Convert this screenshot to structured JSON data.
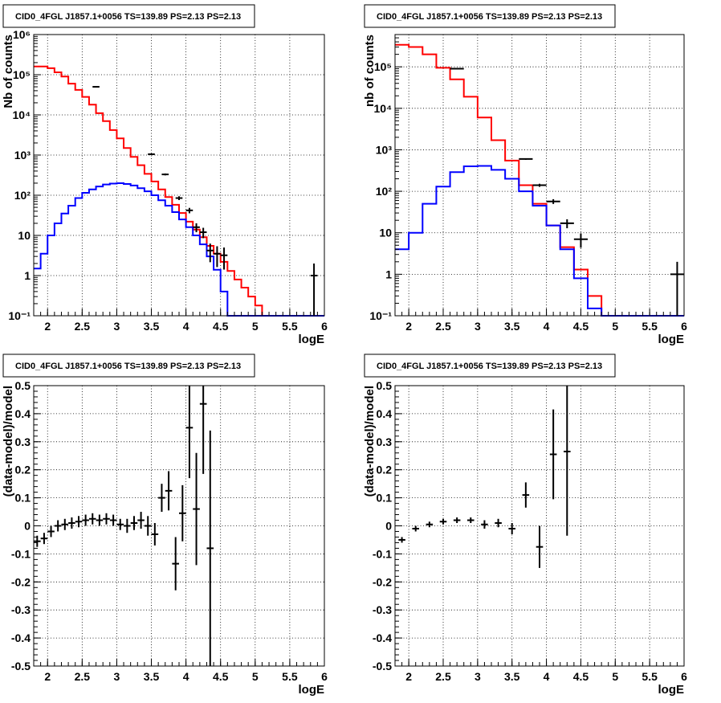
{
  "canvas": {
    "background": "#ffffff"
  },
  "colors": {
    "total": "#ff0000",
    "source": "#0000ff",
    "data": "#000000",
    "grid": "#000000"
  },
  "chart_data": [
    {
      "id": "counts-left",
      "type": "line",
      "title": "CID0_4FGL J1857.1+0056 TS=139.89 PS=2.13 PS=2.13",
      "xlabel": "logE",
      "ylabel": "Nb of counts",
      "xlim": [
        1.8,
        6.0
      ],
      "ylim": [
        0.1,
        1000000
      ],
      "log_y": true,
      "grid": true,
      "x_ticks": [
        "2",
        "2.5",
        "3",
        "3.5",
        "4",
        "4.5",
        "5",
        "5.5",
        "6"
      ],
      "y_ticks": [
        "10^-1",
        "1",
        "10",
        "10^2",
        "10^3",
        "10^4",
        "10^5",
        "10^6"
      ],
      "bin_edges": [
        1.8,
        1.9,
        2.0,
        2.1,
        2.2,
        2.3,
        2.4,
        2.5,
        2.6,
        2.7,
        2.8,
        2.9,
        3.0,
        3.1,
        3.2,
        3.3,
        3.4,
        3.5,
        3.6,
        3.7,
        3.8,
        3.9,
        4.0,
        4.1,
        4.2,
        4.3,
        4.4,
        4.5,
        4.6,
        4.7,
        4.8,
        4.9,
        5.0,
        5.1,
        5.2,
        5.3,
        5.4,
        5.5,
        5.6,
        5.7,
        5.8,
        5.9,
        6.0
      ],
      "series": [
        {
          "name": "total",
          "color": "#ff0000",
          "values": [
            160000,
            160000,
            145000,
            115000,
            90000,
            60000,
            42000,
            28000,
            18000,
            11000,
            7000,
            4200,
            2600,
            1500,
            900,
            560,
            340,
            220,
            140,
            90,
            58,
            36,
            22,
            14,
            9,
            5.5,
            3.5,
            2.2,
            1.3,
            0.8,
            0.5,
            0.3,
            0.18,
            0.1,
            0.1,
            0.1,
            0.1,
            0.1,
            0.1,
            0.1,
            0.1,
            0.1
          ]
        },
        {
          "name": "source",
          "color": "#0000ff",
          "values": [
            1.5,
            3.5,
            10,
            20,
            35,
            55,
            85,
            115,
            140,
            165,
            185,
            195,
            200,
            190,
            175,
            150,
            125,
            100,
            75,
            55,
            38,
            25,
            16,
            10,
            6,
            3,
            1.4,
            0.4,
            0.1,
            0.1,
            0.1,
            0.1,
            0.1,
            0.1,
            0.1,
            0.1,
            0.1,
            0.1,
            0.1,
            0.1,
            0.1,
            0.1
          ]
        }
      ],
      "points": [
        {
          "x": 2.7,
          "y": 50000
        },
        {
          "x": 3.5,
          "y": 1050
        },
        {
          "x": 3.7,
          "y": 330
        },
        {
          "x": 3.9,
          "y": 85
        },
        {
          "x": 4.05,
          "y": 42
        },
        {
          "x": 4.15,
          "y": 16
        },
        {
          "x": 4.25,
          "y": 12
        },
        {
          "x": 4.35,
          "y": 4.2
        },
        {
          "x": 4.45,
          "y": 3.5
        },
        {
          "x": 4.55,
          "y": 3.2
        },
        {
          "x": 5.85,
          "y": 1.0
        }
      ]
    },
    {
      "id": "counts-right",
      "type": "line",
      "title": "CID0_4FGL J1857.1+0056 TS=139.89 PS=2.13 PS=2.13",
      "xlabel": "logE",
      "ylabel": "nb of counts",
      "xlim": [
        1.8,
        6.0
      ],
      "ylim": [
        0.1,
        600000
      ],
      "log_y": true,
      "grid": true,
      "x_ticks": [
        "2",
        "2.5",
        "3",
        "3.5",
        "4",
        "4.5",
        "5",
        "5.5",
        "6"
      ],
      "y_ticks": [
        "10^-1",
        "1",
        "10",
        "10^2",
        "10^3",
        "10^4",
        "10^5"
      ],
      "bin_edges": [
        1.8,
        2.0,
        2.2,
        2.4,
        2.6,
        2.8,
        3.0,
        3.2,
        3.4,
        3.6,
        3.8,
        4.0,
        4.2,
        4.4,
        4.6,
        4.8,
        5.0,
        5.2,
        5.4,
        5.6,
        5.8,
        6.0
      ],
      "series": [
        {
          "name": "total",
          "color": "#ff0000",
          "values": [
            340000,
            300000,
            200000,
            95000,
            50000,
            19000,
            6000,
            1700,
            550,
            140,
            50,
            15,
            4.5,
            1.3,
            0.3,
            0.1,
            0.1,
            0.1,
            0.1,
            0.1,
            0.1
          ]
        },
        {
          "name": "source",
          "color": "#0000ff",
          "values": [
            4,
            10,
            50,
            130,
            290,
            400,
            410,
            330,
            200,
            100,
            45,
            15,
            4,
            0.8,
            0.15,
            0.1,
            0.1,
            0.1,
            0.1,
            0.1,
            0.1
          ]
        }
      ],
      "points": [
        {
          "x": 2.7,
          "y": 90000
        },
        {
          "x": 3.7,
          "y": 600
        },
        {
          "x": 3.9,
          "y": 140
        },
        {
          "x": 4.1,
          "y": 57
        },
        {
          "x": 4.3,
          "y": 17
        },
        {
          "x": 4.5,
          "y": 7
        },
        {
          "x": 5.9,
          "y": 1.0
        }
      ]
    },
    {
      "id": "residual-left",
      "type": "scatter",
      "title": "CID0_4FGL J1857.1+0056 TS=139.89 PS=2.13 PS=2.13",
      "xlabel": "logE",
      "ylabel": "(data-model)/model",
      "xlim": [
        1.8,
        6.0
      ],
      "ylim": [
        -0.5,
        0.5
      ],
      "grid": true,
      "x_ticks": [
        "2",
        "2.5",
        "3",
        "3.5",
        "4",
        "4.5",
        "5",
        "5.5",
        "6"
      ],
      "y_ticks": [
        "-0.5",
        "-0.4",
        "-0.3",
        "-0.2",
        "-0.1",
        "0",
        "0.1",
        "0.2",
        "0.3",
        "0.4",
        "0.5"
      ],
      "points": [
        {
          "x": 1.85,
          "y": -0.055,
          "yerr": 0.02
        },
        {
          "x": 1.95,
          "y": -0.045,
          "yerr": 0.02
        },
        {
          "x": 2.05,
          "y": -0.02,
          "yerr": 0.02
        },
        {
          "x": 2.15,
          "y": 0.0,
          "yerr": 0.02
        },
        {
          "x": 2.25,
          "y": 0.005,
          "yerr": 0.02
        },
        {
          "x": 2.35,
          "y": 0.01,
          "yerr": 0.02
        },
        {
          "x": 2.45,
          "y": 0.015,
          "yerr": 0.02
        },
        {
          "x": 2.55,
          "y": 0.02,
          "yerr": 0.02
        },
        {
          "x": 2.65,
          "y": 0.025,
          "yerr": 0.02
        },
        {
          "x": 2.75,
          "y": 0.02,
          "yerr": 0.02
        },
        {
          "x": 2.85,
          "y": 0.025,
          "yerr": 0.02
        },
        {
          "x": 2.95,
          "y": 0.02,
          "yerr": 0.02
        },
        {
          "x": 3.05,
          "y": 0.005,
          "yerr": 0.02
        },
        {
          "x": 3.15,
          "y": 0.0,
          "yerr": 0.025
        },
        {
          "x": 3.25,
          "y": 0.01,
          "yerr": 0.025
        },
        {
          "x": 3.35,
          "y": 0.02,
          "yerr": 0.03
        },
        {
          "x": 3.45,
          "y": 0.0,
          "yerr": 0.035
        },
        {
          "x": 3.55,
          "y": -0.03,
          "yerr": 0.04
        },
        {
          "x": 3.65,
          "y": 0.1,
          "yerr": 0.05
        },
        {
          "x": 3.75,
          "y": 0.125,
          "yerr": 0.07
        },
        {
          "x": 3.85,
          "y": -0.135,
          "yerr": 0.095
        },
        {
          "x": 3.95,
          "y": 0.045,
          "yerr": 0.1
        },
        {
          "x": 4.05,
          "y": 0.35,
          "yerr": 0.18
        },
        {
          "x": 4.15,
          "y": 0.06,
          "yerr": 0.2
        },
        {
          "x": 4.25,
          "y": 0.435,
          "yerr": 0.25
        },
        {
          "x": 4.35,
          "y": -0.08,
          "yerr": 0.42
        }
      ]
    },
    {
      "id": "residual-right",
      "type": "scatter",
      "title": "CID0_4FGL J1857.1+0056 TS=139.89 PS=2.13 PS=2.13",
      "xlabel": "logE",
      "ylabel": "(data-model)/model",
      "xlim": [
        1.8,
        6.0
      ],
      "ylim": [
        -0.5,
        0.5
      ],
      "grid": true,
      "x_ticks": [
        "2",
        "2.5",
        "3",
        "3.5",
        "4",
        "4.5",
        "5",
        "5.5",
        "6"
      ],
      "y_ticks": [
        "-0.5",
        "-0.4",
        "-0.3",
        "-0.2",
        "-0.1",
        "0",
        "0.1",
        "0.2",
        "0.3",
        "0.4",
        "0.5"
      ],
      "points": [
        {
          "x": 1.9,
          "y": -0.05,
          "yerr": 0.01
        },
        {
          "x": 2.1,
          "y": -0.01,
          "yerr": 0.01
        },
        {
          "x": 2.3,
          "y": 0.005,
          "yerr": 0.01
        },
        {
          "x": 2.5,
          "y": 0.015,
          "yerr": 0.01
        },
        {
          "x": 2.7,
          "y": 0.02,
          "yerr": 0.01
        },
        {
          "x": 2.9,
          "y": 0.02,
          "yerr": 0.01
        },
        {
          "x": 3.1,
          "y": 0.005,
          "yerr": 0.015
        },
        {
          "x": 3.3,
          "y": 0.01,
          "yerr": 0.015
        },
        {
          "x": 3.5,
          "y": -0.01,
          "yerr": 0.02
        },
        {
          "x": 3.7,
          "y": 0.11,
          "yerr": 0.045
        },
        {
          "x": 3.9,
          "y": -0.075,
          "yerr": 0.075
        },
        {
          "x": 4.1,
          "y": 0.255,
          "yerr": 0.16
        },
        {
          "x": 4.3,
          "y": 0.265,
          "yerr": 0.3
        }
      ]
    }
  ]
}
